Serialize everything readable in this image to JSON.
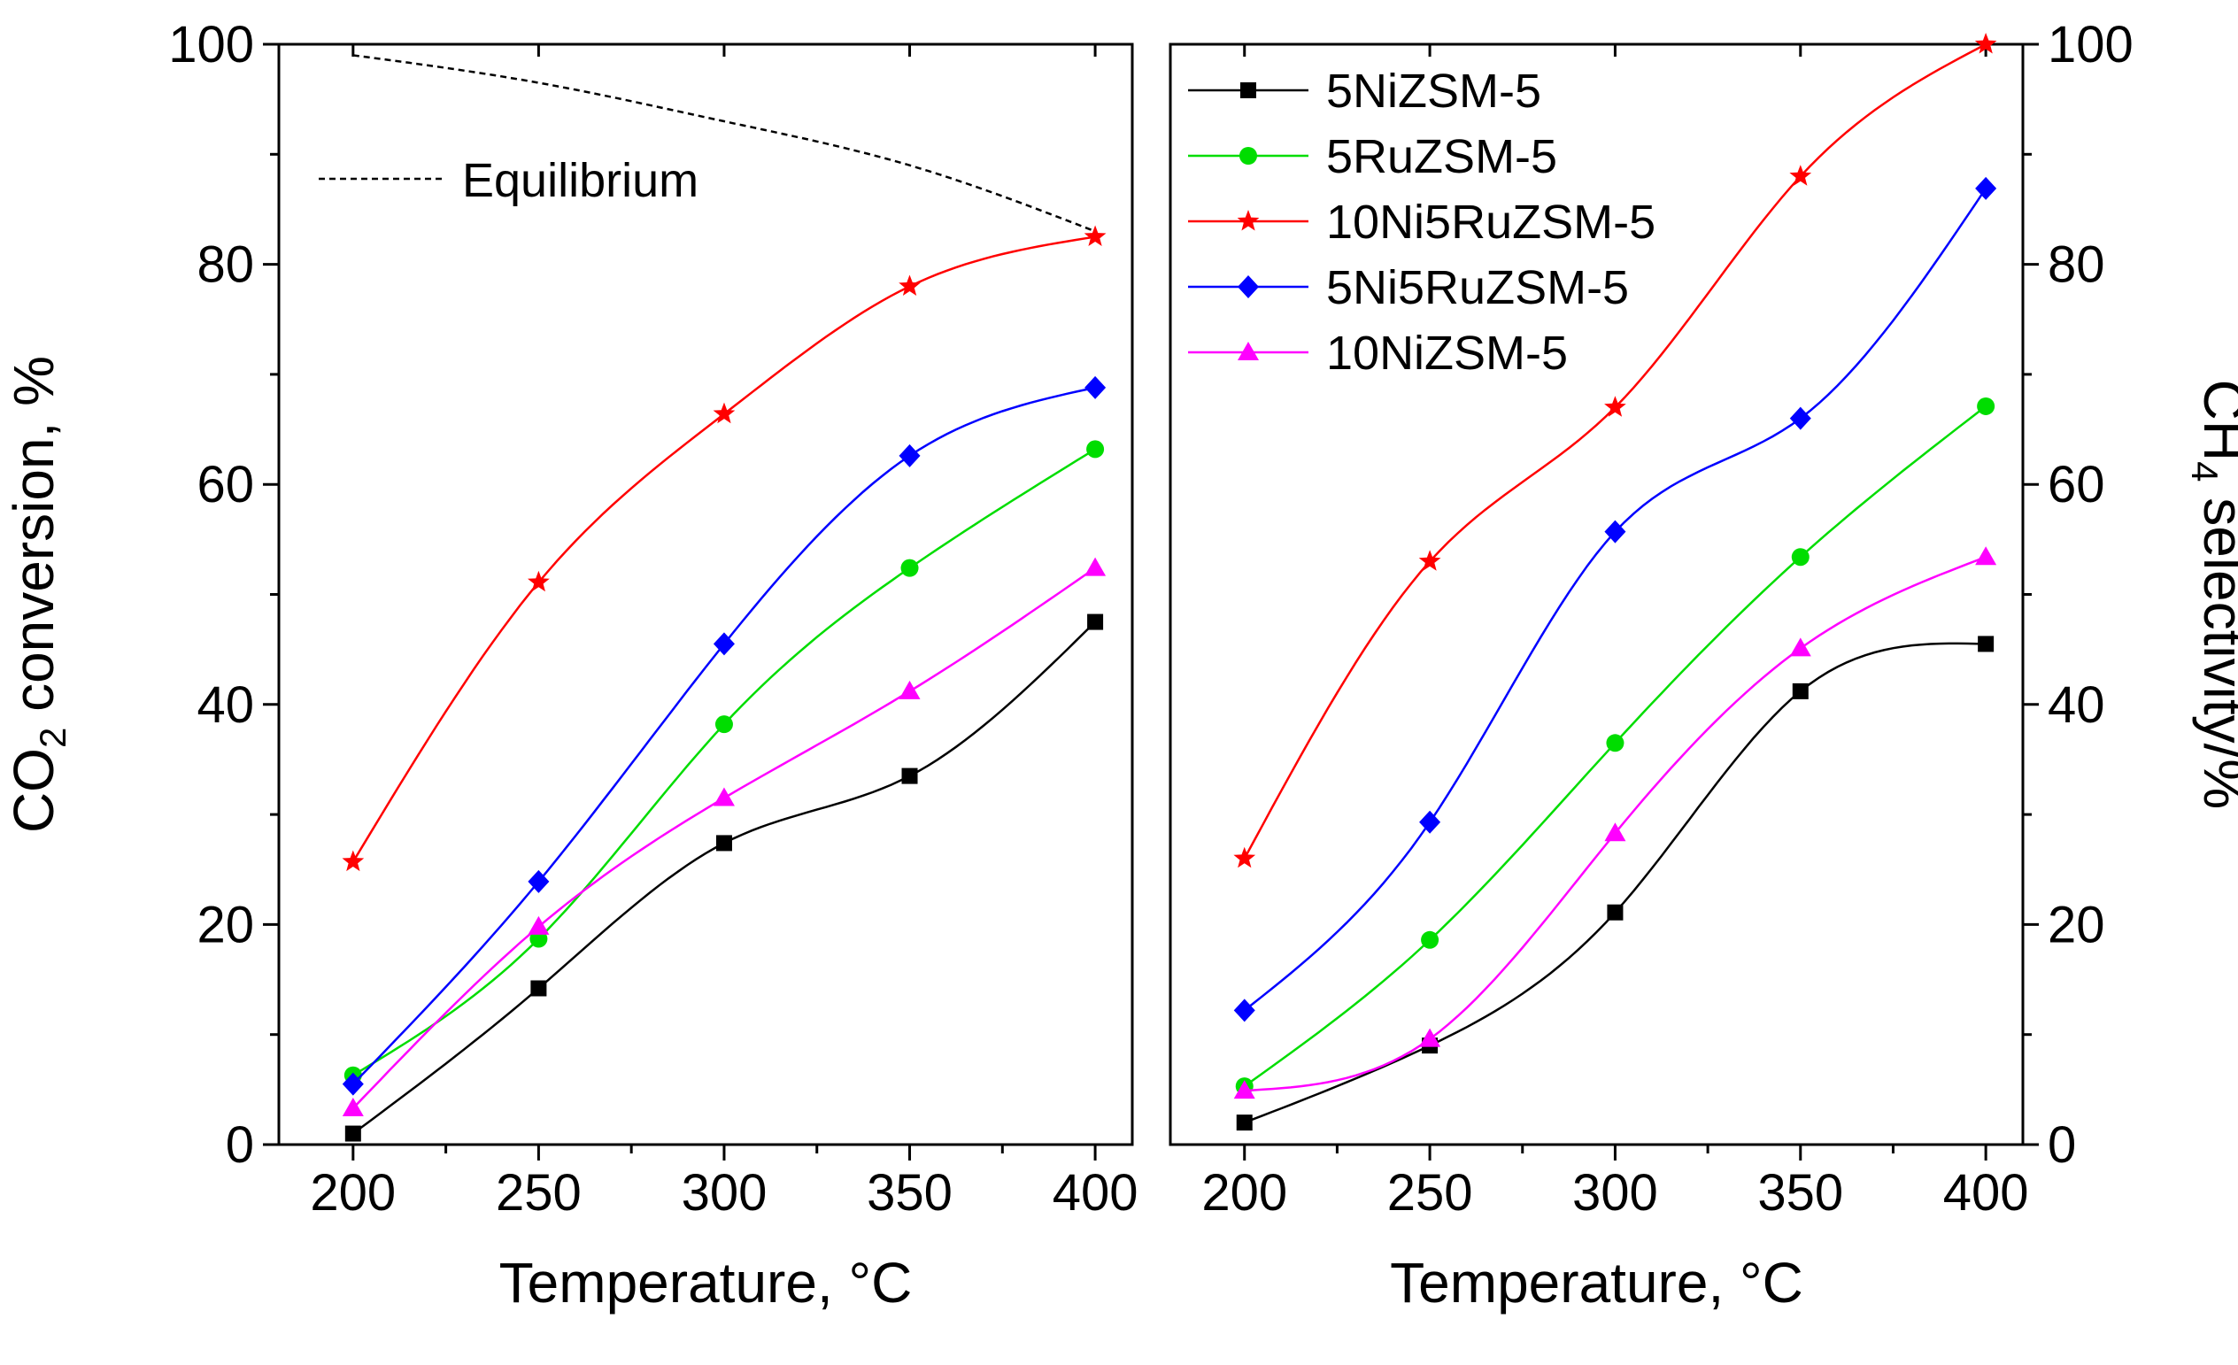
{
  "chart_data": [
    {
      "type": "line",
      "ylabel": {
        "main": "CO",
        "sub": "2",
        "rest": " conversion, %"
      },
      "xlabel": "Temperature, °C",
      "xlim": [
        180,
        410
      ],
      "ylim": [
        0,
        100
      ],
      "x_ticks": [
        "200",
        "250",
        "300",
        "350",
        "400"
      ],
      "y_ticks": [
        "0",
        "20",
        "40",
        "60",
        "80",
        "100"
      ],
      "annotation": "Equilibrium",
      "equilibrium": {
        "x": [
          200,
          250,
          300,
          350,
          400
        ],
        "y": [
          99.0,
          96.5,
          93.0,
          89.0,
          83.0
        ]
      },
      "x": [
        200,
        250,
        300,
        350,
        400
      ],
      "series": [
        {
          "name": "5NiZSM-5",
          "color": "#000000",
          "marker": "square",
          "values": [
            1.0,
            14.2,
            27.4,
            33.5,
            47.5
          ]
        },
        {
          "name": "5RuZSM-5",
          "color": "#00dd00",
          "marker": "circle",
          "values": [
            6.3,
            18.7,
            38.2,
            52.4,
            63.2
          ]
        },
        {
          "name": "10Ni5RuZSM-5",
          "color": "#ff0000",
          "marker": "star",
          "values": [
            25.7,
            51.1,
            66.4,
            78.0,
            82.5
          ]
        },
        {
          "name": "5Ni5RuZSM-5",
          "color": "#0000ff",
          "marker": "diamond",
          "values": [
            5.5,
            23.9,
            45.5,
            62.6,
            68.8
          ]
        },
        {
          "name": "10NiZSM-5",
          "color": "#ff00ff",
          "marker": "triangle",
          "values": [
            3.3,
            19.8,
            31.5,
            41.2,
            52.4
          ]
        }
      ]
    },
    {
      "type": "line",
      "ylabel": {
        "main": "CH",
        "sub": "4",
        "rest": " selectivity/%"
      },
      "xlabel": "Temperature, °C",
      "xlim": [
        180,
        410
      ],
      "ylim": [
        0,
        100
      ],
      "x_ticks": [
        "200",
        "250",
        "300",
        "350",
        "400"
      ],
      "y_ticks": [
        "0",
        "20",
        "40",
        "60",
        "80",
        "100"
      ],
      "legend": "top-left",
      "x": [
        200,
        250,
        300,
        350,
        400
      ],
      "series": [
        {
          "name": "5NiZSM-5",
          "color": "#000000",
          "marker": "square",
          "values": [
            2.0,
            9.0,
            21.1,
            41.2,
            45.5
          ]
        },
        {
          "name": "5RuZSM-5",
          "color": "#00dd00",
          "marker": "circle",
          "values": [
            5.3,
            18.6,
            36.5,
            53.4,
            67.1
          ]
        },
        {
          "name": "10Ni5RuZSM-5",
          "color": "#ff0000",
          "marker": "star",
          "values": [
            26.0,
            53.0,
            67.0,
            88.0,
            100.0
          ]
        },
        {
          "name": "5Ni5RuZSM-5",
          "color": "#0000ff",
          "marker": "diamond",
          "values": [
            12.2,
            29.3,
            55.7,
            66.0,
            86.9
          ]
        },
        {
          "name": "10NiZSM-5",
          "color": "#ff00ff",
          "marker": "triangle",
          "values": [
            4.9,
            9.6,
            28.3,
            45.1,
            53.4
          ]
        }
      ]
    }
  ]
}
